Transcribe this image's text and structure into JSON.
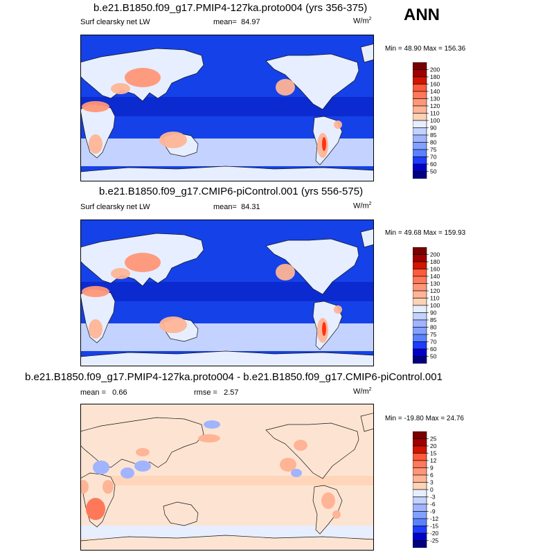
{
  "season": "ANN",
  "colors": {
    "abs": [
      "#000080",
      "#0000c8",
      "#1e3cff",
      "#3c64ff",
      "#5a82ff",
      "#82a0ff",
      "#a0b4ff",
      "#c3d2ff",
      "#e6eeff",
      "#ffe6d2",
      "#ffd2b4",
      "#ffb496",
      "#ff9678",
      "#ff785a",
      "#ff5a3c",
      "#ff3214",
      "#d21400",
      "#a00000",
      "#780000"
    ],
    "diff": [
      "#000080",
      "#0000c8",
      "#1e3cff",
      "#3c64ff",
      "#5a82ff",
      "#82a0ff",
      "#a0b4ff",
      "#c3d2ff",
      "#e6eeff",
      "#ffe6d2",
      "#ffd2b4",
      "#ffb496",
      "#ff9678",
      "#ff785a",
      "#ff5a3c",
      "#ff3214",
      "#d21400",
      "#a00000",
      "#780000"
    ],
    "ocean_low": "#1541e8",
    "tropics": "#0b2bd0",
    "diff_base": "#fde4d2"
  },
  "chart_data": [
    {
      "type": "heatmap",
      "title": "b.e21.B1850.f09_g17.PMIP4-127ka.proto004 (yrs 356-375)",
      "variable": "Surf clearsky net LW",
      "mean_label": "mean=",
      "mean": "84.97",
      "units": "W/m",
      "units_sup": "2",
      "minmax": "Min =  48.90 Max = 156.36",
      "min": 48.9,
      "max": 156.36,
      "colorbar_levels": [
        "200",
        "180",
        "160",
        "140",
        "130",
        "120",
        "110",
        "100",
        "90",
        "85",
        "80",
        "75",
        "70",
        "60",
        "50"
      ],
      "projection": "cylindrical equidistant, centered on 180"
    },
    {
      "type": "heatmap",
      "title": "b.e21.B1850.f09_g17.CMIP6-piControl.001 (yrs 556-575)",
      "variable": "Surf clearsky net LW",
      "mean_label": "mean=",
      "mean": "84.31",
      "units": "W/m",
      "units_sup": "2",
      "minmax": "Min =  49.68 Max = 159.93",
      "min": 49.68,
      "max": 159.93,
      "colorbar_levels": [
        "200",
        "180",
        "160",
        "140",
        "130",
        "120",
        "110",
        "100",
        "90",
        "85",
        "80",
        "75",
        "70",
        "60",
        "50"
      ],
      "projection": "cylindrical equidistant, centered on 180"
    },
    {
      "type": "heatmap",
      "title": "b.e21.B1850.f09_g17.PMIP4-127ka.proto004 - b.e21.B1850.f09_g17.CMIP6-piControl.001",
      "mean_label": "mean =",
      "mean": "0.66",
      "rmse_label": "rmse =",
      "rmse": "2.57",
      "units": "W/m",
      "units_sup": "2",
      "minmax": "Min = -19.80 Max =  24.76",
      "min": -19.8,
      "max": 24.76,
      "colorbar_levels": [
        "25",
        "20",
        "15",
        "12",
        "9",
        "6",
        "3",
        "0",
        "-3",
        "-6",
        "-9",
        "-12",
        "-15",
        "-20",
        "-25"
      ],
      "projection": "cylindrical equidistant, centered on 180"
    }
  ]
}
